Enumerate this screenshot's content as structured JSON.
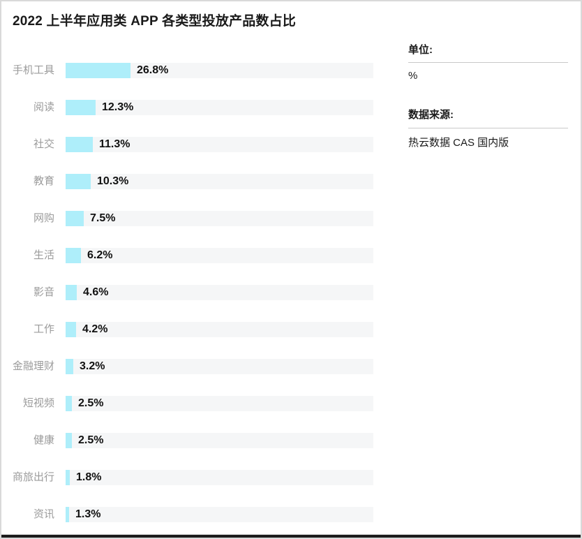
{
  "title": "2022 上半年应用类 APP 各类型投放产品数占比",
  "chart_data": {
    "type": "bar",
    "orientation": "horizontal",
    "title": "2022 上半年应用类 APP 各类型投放产品数占比",
    "unit": "%",
    "categories": [
      "手机工具",
      "阅读",
      "社交",
      "教育",
      "网购",
      "生活",
      "影音",
      "工作",
      "金融理财",
      "短视频",
      "健康",
      "商旅出行",
      "资讯"
    ],
    "values": [
      26.8,
      12.3,
      11.3,
      10.3,
      7.5,
      6.2,
      4.6,
      4.2,
      3.2,
      2.5,
      2.5,
      1.8,
      1.3
    ],
    "value_labels": [
      "26.8%",
      "12.3%",
      "11.3%",
      "10.3%",
      "7.5%",
      "6.2%",
      "4.6%",
      "4.2%",
      "3.2%",
      "2.5%",
      "2.5%",
      "1.8%",
      "1.3%"
    ],
    "xlim": [
      0,
      30
    ],
    "grid": false,
    "legend_position": "none",
    "bar_color": "#aeeefa",
    "track_color": "#f5f6f7"
  },
  "side_panel": {
    "unit_label": "单位:",
    "unit_value": "%",
    "source_label": "数据来源:",
    "source_value": "热云数据 CAS 国内版"
  },
  "colors": {
    "title_text": "#1a1a1a",
    "category_text": "#9b9b9b",
    "value_text": "#111111",
    "border": "#d9d9d9",
    "bottom_strip": "#1b1b1b"
  }
}
